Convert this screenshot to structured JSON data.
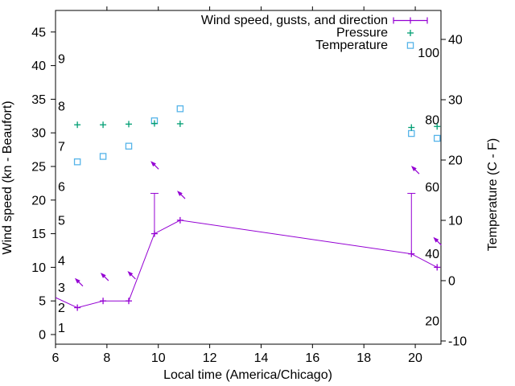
{
  "chart_data": {
    "type": "line",
    "title": "",
    "xlabel": "Local time (America/Chicago)",
    "ylabel_left": "Wind speed (kn - Beaufort)",
    "ylabel_right": "Temperature (C - F)",
    "background": "#ffffff",
    "border_color": "#000000",
    "tick_style": "outward, mirrored on top border for x",
    "x_axis": {
      "domain": [
        6,
        21
      ],
      "ticks": [
        6,
        8,
        10,
        12,
        14,
        16,
        18,
        20
      ]
    },
    "y_left_axis": {
      "unit": "kn",
      "domain": [
        -1.4,
        48.2
      ],
      "ticks": [
        0,
        5,
        10,
        15,
        20,
        25,
        30,
        35,
        40,
        45
      ]
    },
    "y_right_axis": {
      "unit": "C",
      "domain": [
        -10.5,
        44.8
      ],
      "ticks": [
        -10,
        0,
        10,
        20,
        30,
        40
      ]
    },
    "inner_scale_left_beaufort": [
      {
        "label": "1",
        "kn": 1
      },
      {
        "label": "2",
        "kn": 4
      },
      {
        "label": "3",
        "kn": 7
      },
      {
        "label": "4",
        "kn": 11
      },
      {
        "label": "5",
        "kn": 17
      },
      {
        "label": "6",
        "kn": 22
      },
      {
        "label": "7",
        "kn": 28
      },
      {
        "label": "8",
        "kn": 34
      },
      {
        "label": "9",
        "kn": 41
      }
    ],
    "inner_scale_right_fahrenheit": [
      {
        "label": "20",
        "f": 20
      },
      {
        "label": "40",
        "f": 40
      },
      {
        "label": "60",
        "f": 60
      },
      {
        "label": "80",
        "f": 80
      },
      {
        "label": "100",
        "f": 100
      }
    ],
    "legend": {
      "position": "top-right"
    },
    "series": [
      {
        "id": "wind",
        "label": "Wind speed, gusts, and direction",
        "color": "#9400d3",
        "style": "line+points+gust-errorbars+direction-vectors",
        "y_axis": "left (kn)",
        "legend_marker": "errorbar-line",
        "points": [
          {
            "t": 6.0,
            "kn": 5.5,
            "marker": false
          },
          {
            "t": 6.85,
            "kn": 4
          },
          {
            "t": 7.85,
            "kn": 5
          },
          {
            "t": 8.85,
            "kn": 5
          },
          {
            "t": 9.85,
            "kn": 15,
            "gust": 21
          },
          {
            "t": 10.85,
            "kn": 17
          },
          {
            "t": 19.85,
            "kn": 12,
            "gust": 21
          },
          {
            "t": 20.85,
            "kn": 10
          }
        ],
        "direction_arrows": [
          {
            "t": 6.75,
            "kn": 8.4
          },
          {
            "t": 7.75,
            "kn": 9.2
          },
          {
            "t": 8.8,
            "kn": 9.45
          },
          {
            "t": 9.7,
            "kn": 25.8
          },
          {
            "t": 10.73,
            "kn": 21.4
          },
          {
            "t": 19.84,
            "kn": 25.1
          },
          {
            "t": 20.7,
            "kn": 14.5
          }
        ]
      },
      {
        "id": "pressure",
        "label": "Pressure",
        "color": "#009e73",
        "style": "points",
        "marker": "plus",
        "y_axis": "hidden (no pressure scale drawn); y_kn = plotted height in left-axis knot units",
        "legend_marker": "plus",
        "points": [
          {
            "t": 6.85,
            "y_kn": 31.2
          },
          {
            "t": 7.85,
            "y_kn": 31.2
          },
          {
            "t": 8.85,
            "y_kn": 31.3
          },
          {
            "t": 9.85,
            "y_kn": 31.4
          },
          {
            "t": 10.85,
            "y_kn": 31.35
          },
          {
            "t": 19.85,
            "y_kn": 30.8
          },
          {
            "t": 20.85,
            "y_kn": 30.95
          }
        ]
      },
      {
        "id": "temperature",
        "label": "Temperature",
        "color": "#56b4e9",
        "style": "points",
        "marker": "open-square",
        "y_axis": "right (C)",
        "legend_marker": "open-square",
        "points": [
          {
            "t": 6.85,
            "c": 19.7
          },
          {
            "t": 7.85,
            "c": 20.6
          },
          {
            "t": 8.85,
            "c": 22.3
          },
          {
            "t": 9.85,
            "c": 26.5
          },
          {
            "t": 10.85,
            "c": 28.5
          },
          {
            "t": 19.85,
            "c": 24.4
          },
          {
            "t": 20.85,
            "c": 23.6
          }
        ]
      }
    ]
  }
}
